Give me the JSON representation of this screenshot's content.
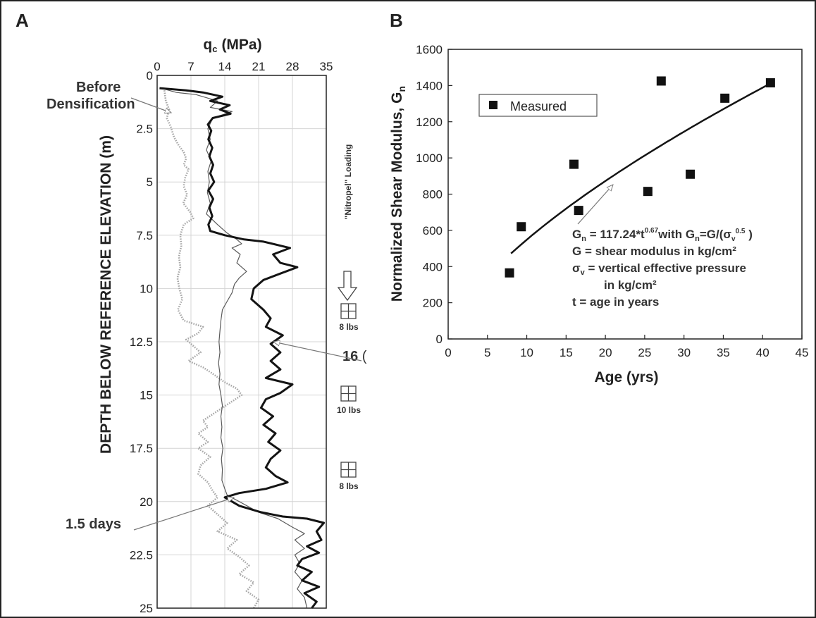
{
  "panels": {
    "a_letter": "A",
    "b_letter": "B"
  },
  "chart_data": [
    {
      "type": "line",
      "panel": "A",
      "xlabel": "qc (MPa)",
      "xlabel_main": "q",
      "xlabel_sub": "c",
      "xlabel_unit": "(MPa)",
      "ylabel": "DEPTH BELOW REFERENCE ELEVATION (m)",
      "x_ticks": [
        "0",
        "7",
        "14",
        "21",
        "28",
        "35"
      ],
      "y_ticks": [
        "0",
        "2.5",
        "5",
        "7.5",
        "10",
        "12.5",
        "15",
        "17.5",
        "20",
        "22.5",
        "25"
      ],
      "xlim": [
        0,
        35
      ],
      "ylim": [
        0,
        25
      ],
      "y_inverted": true,
      "grid": true,
      "series": [
        {
          "style": "dotted-gray",
          "points": [
            [
              1.5,
              0.7
            ],
            [
              1.8,
              1.2
            ],
            [
              2.5,
              1.6
            ],
            [
              2,
              2
            ],
            [
              2.8,
              2.4
            ],
            [
              3.5,
              2.9
            ],
            [
              4.5,
              3.3
            ],
            [
              5.5,
              3.6
            ],
            [
              6,
              3.9
            ],
            [
              5.5,
              4.2
            ],
            [
              6.5,
              4.4
            ],
            [
              5.8,
              4.8
            ],
            [
              5.5,
              5.2
            ],
            [
              6.2,
              5.6
            ],
            [
              5.4,
              6
            ],
            [
              6.8,
              6.4
            ],
            [
              7.5,
              6.7
            ],
            [
              5.5,
              7
            ],
            [
              4.8,
              7.5
            ],
            [
              5,
              8
            ],
            [
              4.5,
              8.5
            ],
            [
              4.8,
              9
            ],
            [
              4.2,
              9.5
            ],
            [
              4.6,
              10
            ],
            [
              5.2,
              10.5
            ],
            [
              4.3,
              11
            ],
            [
              5.5,
              11.5
            ],
            [
              9.5,
              11.8
            ],
            [
              8.5,
              12.1
            ],
            [
              6,
              12.4
            ],
            [
              7.5,
              12.7
            ],
            [
              9,
              13
            ],
            [
              6.5,
              13.4
            ],
            [
              9.5,
              13.7
            ],
            [
              11.5,
              14
            ],
            [
              14,
              14.4
            ],
            [
              16.5,
              14.7
            ],
            [
              17.5,
              15
            ],
            [
              15.5,
              15.3
            ],
            [
              13.5,
              15.6
            ],
            [
              11.5,
              15.9
            ],
            [
              9.5,
              16.2
            ],
            [
              10.5,
              16.5
            ],
            [
              8.5,
              16.8
            ],
            [
              10.5,
              17.2
            ],
            [
              8.5,
              17.5
            ],
            [
              11,
              17.9
            ],
            [
              9,
              18.3
            ],
            [
              8.5,
              18.7
            ],
            [
              10.5,
              19.1
            ],
            [
              11.5,
              19.5
            ],
            [
              12.5,
              19.8
            ],
            [
              10.5,
              20.2
            ],
            [
              12.5,
              20.6
            ],
            [
              14.5,
              21
            ],
            [
              12.5,
              21.4
            ],
            [
              16.5,
              21.8
            ],
            [
              14.5,
              22.2
            ],
            [
              17,
              22.6
            ],
            [
              19,
              23
            ],
            [
              17,
              23.4
            ],
            [
              20,
              23.8
            ],
            [
              18.5,
              24.2
            ],
            [
              21,
              24.6
            ],
            [
              20,
              25
            ]
          ]
        },
        {
          "style": "thin-gray",
          "points": [
            [
              0.8,
              0.6
            ],
            [
              4,
              0.8
            ],
            [
              8,
              0.9
            ],
            [
              12.5,
              1.2
            ],
            [
              11,
              1.5
            ],
            [
              15.5,
              1.7
            ],
            [
              11.5,
              2
            ],
            [
              10.5,
              2.5
            ],
            [
              11,
              3
            ],
            [
              10.2,
              3.5
            ],
            [
              11.2,
              4
            ],
            [
              10.5,
              4.5
            ],
            [
              10.8,
              5
            ],
            [
              10.4,
              5.5
            ],
            [
              11,
              6
            ],
            [
              10.2,
              6.5
            ],
            [
              12.5,
              7
            ],
            [
              14.5,
              7.4
            ],
            [
              16.5,
              7.7
            ],
            [
              17.5,
              7.9
            ],
            [
              15.5,
              8.1
            ],
            [
              17.2,
              8.4
            ],
            [
              16.5,
              8.8
            ],
            [
              18.5,
              9.2
            ],
            [
              17,
              9.5
            ],
            [
              16,
              9.8
            ],
            [
              15.5,
              10.2
            ],
            [
              14.5,
              10.6
            ],
            [
              13.5,
              11
            ],
            [
              13.2,
              11.5
            ],
            [
              13,
              12
            ],
            [
              12.8,
              12.5
            ],
            [
              13,
              13
            ],
            [
              12.7,
              13.5
            ],
            [
              13,
              14
            ],
            [
              12.8,
              14.5
            ],
            [
              13.2,
              15
            ],
            [
              13.5,
              15.5
            ],
            [
              13.2,
              16
            ],
            [
              13.4,
              16.5
            ],
            [
              13.2,
              17
            ],
            [
              13.6,
              17.5
            ],
            [
              13.3,
              18
            ],
            [
              13.5,
              18.5
            ],
            [
              13.4,
              19
            ],
            [
              14,
              19.4
            ],
            [
              14.5,
              19.7
            ],
            [
              17,
              20
            ],
            [
              21,
              20.5
            ],
            [
              25,
              20.8
            ],
            [
              28,
              21.2
            ],
            [
              30.5,
              21.5
            ],
            [
              28.5,
              21.8
            ],
            [
              30.5,
              22.2
            ],
            [
              28.5,
              22.5
            ],
            [
              29.5,
              22.9
            ],
            [
              28.5,
              23.3
            ],
            [
              30,
              23.7
            ],
            [
              29,
              24.1
            ],
            [
              30.5,
              24.5
            ],
            [
              31,
              25
            ]
          ]
        },
        {
          "style": "thick-black",
          "points": [
            [
              0.5,
              0.6
            ],
            [
              6,
              0.7
            ],
            [
              9.5,
              0.8
            ],
            [
              13.5,
              1
            ],
            [
              11,
              1.2
            ],
            [
              15,
              1.4
            ],
            [
              13,
              1.6
            ],
            [
              15.2,
              1.8
            ],
            [
              11.5,
              2
            ],
            [
              10.5,
              2.3
            ],
            [
              11.2,
              2.6
            ],
            [
              10.6,
              3
            ],
            [
              11.4,
              3.4
            ],
            [
              10.8,
              3.8
            ],
            [
              11.6,
              4.2
            ],
            [
              11,
              4.6
            ],
            [
              11.8,
              5
            ],
            [
              10.6,
              5.4
            ],
            [
              11.6,
              5.8
            ],
            [
              10.8,
              6.2
            ],
            [
              11.4,
              6.6
            ],
            [
              10.6,
              7
            ],
            [
              11,
              7.3
            ],
            [
              14,
              7.5
            ],
            [
              18,
              7.7
            ],
            [
              22,
              7.8
            ],
            [
              27.5,
              8.1
            ],
            [
              24,
              8.4
            ],
            [
              25.5,
              8.8
            ],
            [
              29,
              9
            ],
            [
              25.5,
              9.3
            ],
            [
              22,
              9.6
            ],
            [
              20,
              10
            ],
            [
              19.5,
              10.5
            ],
            [
              22,
              11
            ],
            [
              23.5,
              11.4
            ],
            [
              22.5,
              11.8
            ],
            [
              26,
              12.2
            ],
            [
              23.5,
              12.6
            ],
            [
              25.5,
              13
            ],
            [
              23.5,
              13.4
            ],
            [
              25.5,
              13.8
            ],
            [
              22.5,
              14.2
            ],
            [
              28,
              14.5
            ],
            [
              25.5,
              14.9
            ],
            [
              22.5,
              15.2
            ],
            [
              21.5,
              15.6
            ],
            [
              24,
              16
            ],
            [
              22,
              16.4
            ],
            [
              24.5,
              16.8
            ],
            [
              23,
              17.2
            ],
            [
              25.5,
              17.6
            ],
            [
              23.5,
              18
            ],
            [
              22.5,
              18.4
            ],
            [
              24.5,
              18.8
            ],
            [
              27,
              19.1
            ],
            [
              22.5,
              19.4
            ],
            [
              17,
              19.6
            ],
            [
              14,
              19.8
            ],
            [
              17,
              20.2
            ],
            [
              21.5,
              20.5
            ],
            [
              26,
              20.7
            ],
            [
              31,
              20.8
            ],
            [
              34.5,
              21
            ],
            [
              33,
              21.4
            ],
            [
              34,
              21.8
            ],
            [
              31,
              22.1
            ],
            [
              33.5,
              22.4
            ],
            [
              30,
              22.7
            ],
            [
              29,
              23
            ],
            [
              32,
              23.3
            ],
            [
              30,
              23.7
            ],
            [
              33.5,
              24
            ],
            [
              30.5,
              24.3
            ],
            [
              33,
              24.7
            ],
            [
              32,
              25
            ]
          ]
        }
      ],
      "annotations": {
        "before": [
          "Before",
          "Densification"
        ],
        "one_five_days": "1.5 days",
        "sixteen": "16",
        "nitropel": "\"Nitropel\" Loading",
        "weights": [
          "8 lbs",
          "10 lbs",
          "8 lbs"
        ]
      }
    },
    {
      "type": "scatter",
      "panel": "B",
      "xlabel": "Age (yrs)",
      "ylabel": "Normalized Shear Modulus, Gn",
      "ylabel_main": "Normalized Shear Modulus, G",
      "ylabel_sub": "n",
      "x_ticks": [
        "0",
        "5",
        "10",
        "15",
        "20",
        "25",
        "30",
        "35",
        "40",
        "45"
      ],
      "y_ticks": [
        "0",
        "200",
        "400",
        "600",
        "800",
        "1000",
        "1200",
        "1400",
        "1600"
      ],
      "xlim": [
        0,
        45
      ],
      "ylim": [
        0,
        1600
      ],
      "grid": false,
      "legend": "top-left",
      "series": [
        {
          "name": "Measured",
          "points": [
            [
              7.8,
              365
            ],
            [
              9.3,
              620
            ],
            [
              16,
              965
            ],
            [
              16.6,
              710
            ],
            [
              25.4,
              815
            ],
            [
              27.1,
              1425
            ],
            [
              30.8,
              910
            ],
            [
              35.2,
              1330
            ],
            [
              41,
              1415
            ]
          ]
        }
      ],
      "fit": {
        "coefficient": 117.24,
        "exponent": 0.67,
        "x_range": [
          8,
          41
        ]
      },
      "equation": {
        "line1_a": "G",
        "line1_a_sub": "n",
        "line1_b": " = 117.24*t",
        "line1_b_sup": "0.67",
        "line1_c": "with G",
        "line1_c_sub": "n",
        "line1_d": "=G/(σ",
        "line1_d_sub": "v",
        "line1_d_sup": "0.5",
        "line1_e": " )",
        "line2": "G = shear modulus in kg/cm²",
        "line3": "σv = vertical effective pressure",
        "line3_a": "σ",
        "line3_a_sub": "v",
        "line3_b": " = vertical effective pressure",
        "line4": "in kg/cm²",
        "line5": "t = age in years"
      }
    }
  ],
  "colors": {
    "dotted": "#a8a8a8",
    "thin": "#5a5a5a",
    "thick": "#141414",
    "grid": "#d4d4d4",
    "annotation": "#777777"
  }
}
